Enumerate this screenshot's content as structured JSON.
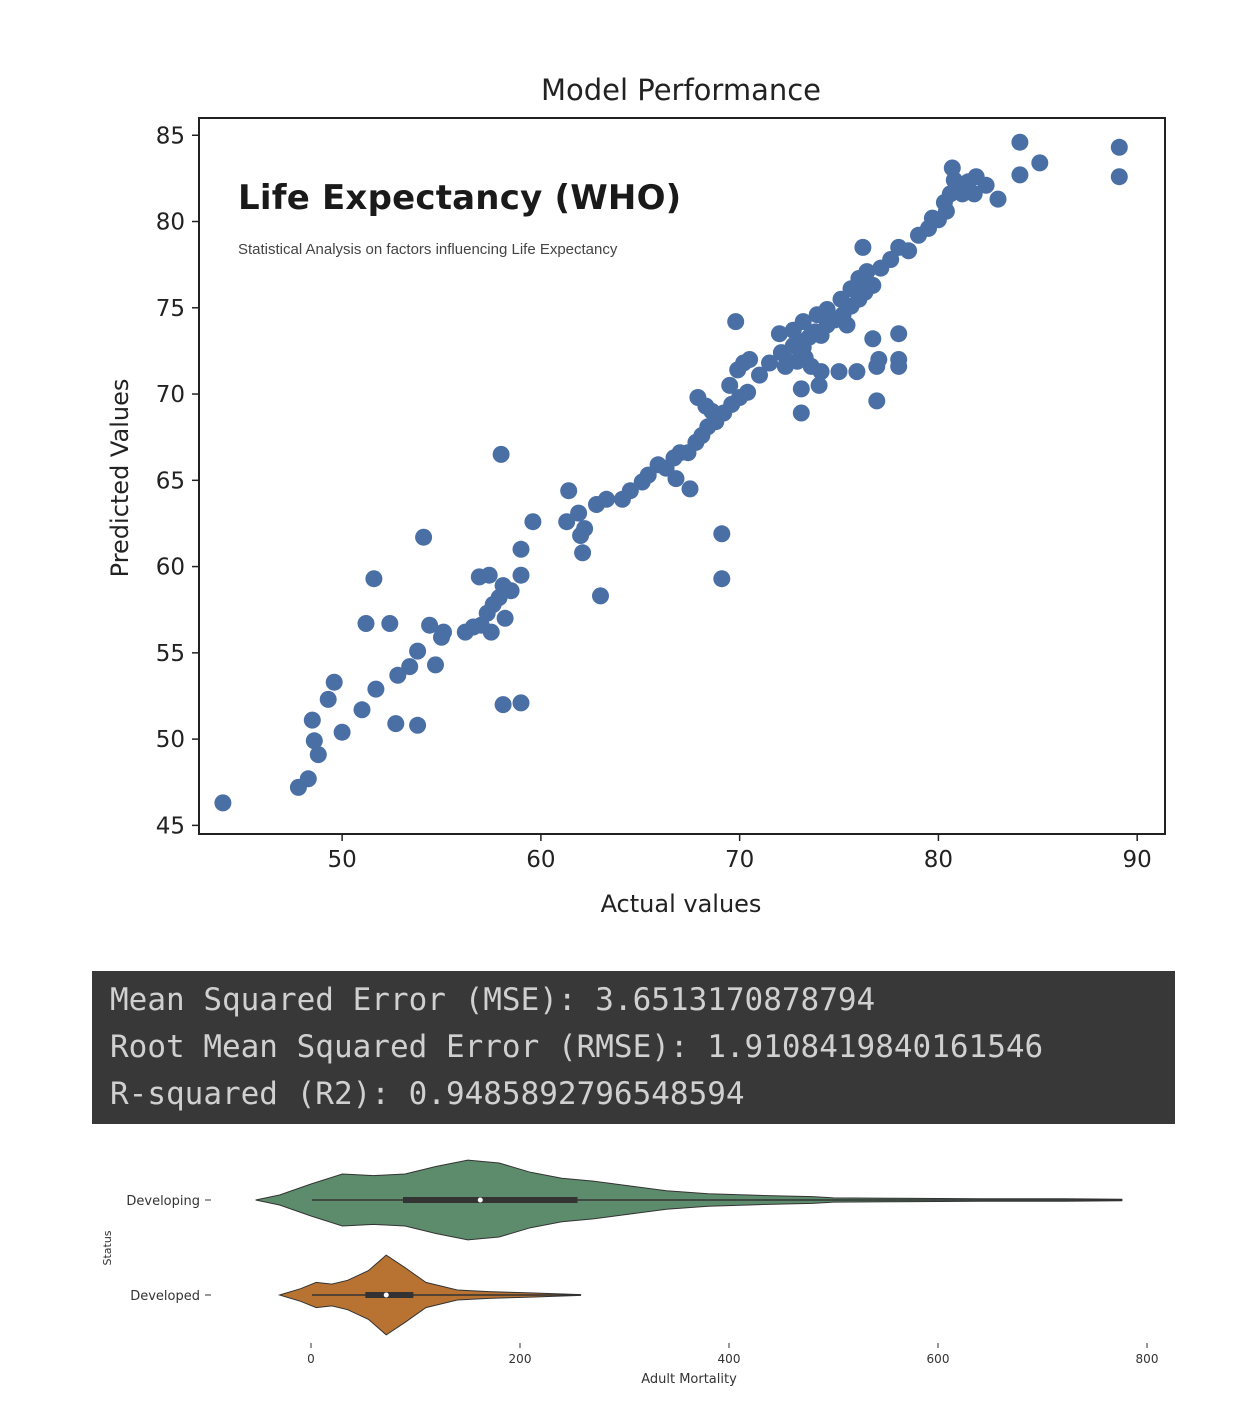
{
  "chart_data": [
    {
      "type": "scatter",
      "title": "Model Performance",
      "xlabel": "Actual values",
      "ylabel": "Predicted Values",
      "xlim": [
        42.8,
        91.4
      ],
      "ylim": [
        44.5,
        86.0
      ],
      "xticks": [
        50,
        60,
        70,
        80,
        90
      ],
      "yticks": [
        45,
        50,
        55,
        60,
        65,
        70,
        75,
        80,
        85
      ],
      "color": "#4a6fa5",
      "grid": false,
      "points": [
        [
          44.0,
          46.3
        ],
        [
          47.8,
          47.2
        ],
        [
          48.3,
          47.7
        ],
        [
          48.8,
          49.1
        ],
        [
          48.6,
          49.9
        ],
        [
          48.5,
          51.1
        ],
        [
          49.3,
          52.3
        ],
        [
          49.6,
          53.3
        ],
        [
          50.0,
          50.4
        ],
        [
          51.0,
          51.7
        ],
        [
          51.7,
          52.9
        ],
        [
          51.6,
          59.3
        ],
        [
          51.2,
          56.7
        ],
        [
          52.4,
          56.7
        ],
        [
          52.8,
          53.7
        ],
        [
          53.4,
          54.2
        ],
        [
          53.8,
          55.1
        ],
        [
          52.7,
          50.9
        ],
        [
          53.8,
          50.8
        ],
        [
          54.1,
          61.7
        ],
        [
          54.7,
          54.3
        ],
        [
          55.0,
          55.9
        ],
        [
          54.4,
          56.6
        ],
        [
          55.1,
          56.2
        ],
        [
          56.2,
          56.2
        ],
        [
          56.6,
          56.5
        ],
        [
          57.0,
          56.6
        ],
        [
          57.3,
          57.3
        ],
        [
          57.6,
          57.8
        ],
        [
          57.9,
          58.2
        ],
        [
          56.9,
          59.4
        ],
        [
          57.4,
          59.5
        ],
        [
          58.1,
          58.9
        ],
        [
          58.5,
          58.6
        ],
        [
          59.0,
          59.5
        ],
        [
          58.2,
          57.0
        ],
        [
          57.5,
          56.2
        ],
        [
          58.1,
          52.0
        ],
        [
          59.0,
          52.1
        ],
        [
          58.0,
          66.5
        ],
        [
          59.6,
          62.6
        ],
        [
          59.0,
          61.0
        ],
        [
          61.3,
          62.6
        ],
        [
          61.4,
          64.4
        ],
        [
          61.9,
          63.1
        ],
        [
          62.2,
          62.2
        ],
        [
          62.8,
          63.6
        ],
        [
          63.3,
          63.9
        ],
        [
          62.0,
          61.8
        ],
        [
          62.1,
          60.8
        ],
        [
          63.0,
          58.3
        ],
        [
          64.1,
          63.9
        ],
        [
          64.5,
          64.4
        ],
        [
          65.1,
          64.9
        ],
        [
          65.4,
          65.3
        ],
        [
          65.9,
          65.9
        ],
        [
          66.3,
          65.7
        ],
        [
          66.7,
          66.3
        ],
        [
          67.0,
          66.6
        ],
        [
          67.4,
          66.6
        ],
        [
          66.8,
          65.1
        ],
        [
          67.5,
          64.5
        ],
        [
          67.8,
          67.2
        ],
        [
          68.1,
          67.6
        ],
        [
          68.4,
          68.1
        ],
        [
          68.8,
          68.4
        ],
        [
          69.2,
          68.9
        ],
        [
          69.6,
          69.4
        ],
        [
          70.0,
          69.8
        ],
        [
          70.4,
          70.1
        ],
        [
          69.5,
          70.5
        ],
        [
          68.6,
          69.0
        ],
        [
          67.9,
          69.8
        ],
        [
          68.3,
          69.3
        ],
        [
          69.9,
          71.4
        ],
        [
          70.2,
          71.8
        ],
        [
          69.8,
          74.2
        ],
        [
          69.1,
          61.9
        ],
        [
          69.1,
          59.3
        ],
        [
          72.1,
          72.4
        ],
        [
          72.4,
          71.9
        ],
        [
          72.7,
          72.8
        ],
        [
          72.9,
          73.1
        ],
        [
          73.2,
          72.7
        ],
        [
          73.5,
          73.3
        ],
        [
          73.8,
          73.6
        ],
        [
          74.1,
          73.4
        ],
        [
          74.4,
          74.0
        ],
        [
          74.8,
          74.3
        ],
        [
          75.2,
          74.6
        ],
        [
          75.6,
          75.1
        ],
        [
          76.0,
          75.5
        ],
        [
          76.3,
          75.9
        ],
        [
          76.7,
          76.3
        ],
        [
          72.0,
          73.5
        ],
        [
          72.7,
          73.7
        ],
        [
          73.2,
          74.2
        ],
        [
          73.9,
          74.6
        ],
        [
          74.4,
          74.9
        ],
        [
          75.1,
          75.5
        ],
        [
          75.6,
          76.1
        ],
        [
          76.0,
          76.7
        ],
        [
          76.4,
          77.1
        ],
        [
          71.5,
          71.8
        ],
        [
          72.3,
          71.6
        ],
        [
          72.9,
          71.9
        ],
        [
          73.3,
          72.1
        ],
        [
          73.6,
          71.6
        ],
        [
          73.1,
          70.3
        ],
        [
          74.0,
          70.5
        ],
        [
          73.1,
          68.9
        ],
        [
          74.1,
          71.3
        ],
        [
          75.0,
          71.3
        ],
        [
          75.9,
          71.3
        ],
        [
          76.9,
          71.6
        ],
        [
          77.0,
          72.0
        ],
        [
          78.0,
          72.0
        ],
        [
          78.0,
          71.6
        ],
        [
          78.0,
          73.5
        ],
        [
          76.9,
          69.6
        ],
        [
          76.2,
          78.5
        ],
        [
          77.1,
          77.3
        ],
        [
          77.6,
          77.8
        ],
        [
          78.0,
          78.5
        ],
        [
          78.5,
          78.3
        ],
        [
          79.0,
          79.2
        ],
        [
          79.5,
          79.6
        ],
        [
          80.0,
          80.1
        ],
        [
          80.4,
          80.6
        ],
        [
          79.7,
          80.2
        ],
        [
          80.3,
          81.1
        ],
        [
          80.6,
          81.6
        ],
        [
          81.0,
          82.1
        ],
        [
          81.5,
          82.3
        ],
        [
          81.9,
          82.6
        ],
        [
          82.4,
          82.1
        ],
        [
          81.2,
          81.6
        ],
        [
          80.8,
          82.4
        ],
        [
          80.7,
          83.1
        ],
        [
          81.8,
          81.6
        ],
        [
          83.0,
          81.3
        ],
        [
          84.1,
          84.6
        ],
        [
          84.1,
          82.7
        ],
        [
          85.1,
          83.4
        ],
        [
          89.1,
          84.3
        ],
        [
          89.1,
          82.6
        ],
        [
          76.7,
          73.2
        ],
        [
          75.4,
          74.0
        ],
        [
          70.5,
          72.0
        ],
        [
          71.0,
          71.1
        ]
      ]
    },
    {
      "type": "violin",
      "xlabel": "Adult Mortality",
      "ylabel": "Status",
      "xticks": [
        0,
        200,
        400,
        600,
        800
      ],
      "xlim": [
        -75,
        805
      ],
      "categories": [
        "Developing",
        "Developed"
      ],
      "series": [
        {
          "name": "Developing",
          "color": "#5d8c6c",
          "min": 1,
          "q1": 88,
          "median": 162,
          "q3": 255,
          "max": 776,
          "density": [
            [
              -53,
              0.0
            ],
            [
              -30,
              0.12
            ],
            [
              0,
              0.38
            ],
            [
              30,
              0.62
            ],
            [
              60,
              0.58
            ],
            [
              90,
              0.62
            ],
            [
              120,
              0.8
            ],
            [
              150,
              0.95
            ],
            [
              180,
              0.88
            ],
            [
              210,
              0.66
            ],
            [
              240,
              0.52
            ],
            [
              270,
              0.45
            ],
            [
              300,
              0.35
            ],
            [
              340,
              0.22
            ],
            [
              380,
              0.15
            ],
            [
              430,
              0.11
            ],
            [
              480,
              0.08
            ],
            [
              500,
              0.05
            ],
            [
              560,
              0.04
            ],
            [
              640,
              0.03
            ],
            [
              720,
              0.03
            ],
            [
              776,
              0.02
            ]
          ]
        },
        {
          "name": "Developed",
          "color": "#b87333",
          "min": 1,
          "q1": 52,
          "median": 72,
          "q3": 98,
          "max": 258,
          "density": [
            [
              -30,
              0.0
            ],
            [
              -10,
              0.15
            ],
            [
              5,
              0.3
            ],
            [
              20,
              0.26
            ],
            [
              35,
              0.35
            ],
            [
              55,
              0.58
            ],
            [
              72,
              0.95
            ],
            [
              90,
              0.65
            ],
            [
              110,
              0.3
            ],
            [
              140,
              0.12
            ],
            [
              170,
              0.08
            ],
            [
              210,
              0.05
            ],
            [
              258,
              0.01
            ]
          ]
        }
      ]
    }
  ],
  "overlay": {
    "title": "Life Expectancy (WHO)",
    "subtitle": "Statistical Analysis on factors influencing Life Expectancy"
  },
  "metrics": {
    "mse": "Mean Squared Error (MSE): 3.6513170878794",
    "rmse": "Root Mean Squared Error (RMSE): 1.9108419840161546",
    "r2": "R-squared (R2): 0.9485892796548594"
  }
}
